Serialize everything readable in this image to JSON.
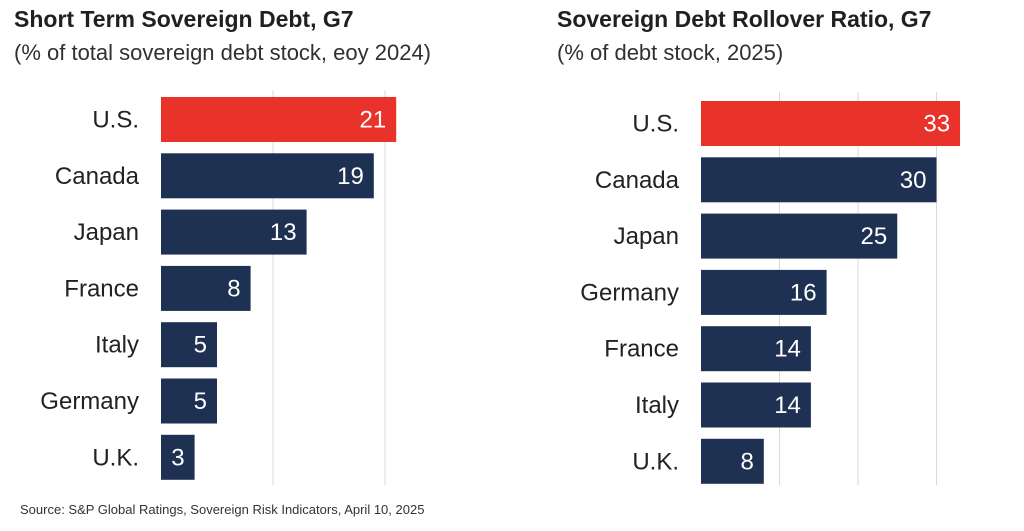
{
  "colors": {
    "highlight": "#e8322a",
    "bar": "#1f3152",
    "grid": "#d9d9d9",
    "value_text": "#ffffff"
  },
  "chart_data": [
    {
      "type": "bar",
      "orientation": "horizontal",
      "title": "Short Term Sovereign Debt, G7",
      "subtitle": "(% of total sovereign debt stock, eoy 2024)",
      "categories": [
        "U.S.",
        "Canada",
        "Japan",
        "France",
        "Italy",
        "Germany",
        "U.K."
      ],
      "values": [
        21,
        19,
        13,
        8,
        5,
        5,
        3
      ],
      "highlight": [
        "U.S."
      ],
      "xlim": [
        0,
        25
      ],
      "grid": true,
      "data_labels": true
    },
    {
      "type": "bar",
      "orientation": "horizontal",
      "title": "Sovereign Debt Rollover Ratio, G7",
      "subtitle": "(% of debt stock, 2025)",
      "categories": [
        "U.S.",
        "Canada",
        "Japan",
        "Germany",
        "France",
        "Italy",
        "U.K."
      ],
      "values": [
        33,
        30,
        25,
        16,
        14,
        14,
        8
      ],
      "highlight": [
        "U.S."
      ],
      "xlim": [
        0,
        35
      ],
      "grid": true,
      "data_labels": true
    }
  ],
  "source": "Source: S&P Global Ratings, Sovereign Risk Indicators, April 10, 2025"
}
